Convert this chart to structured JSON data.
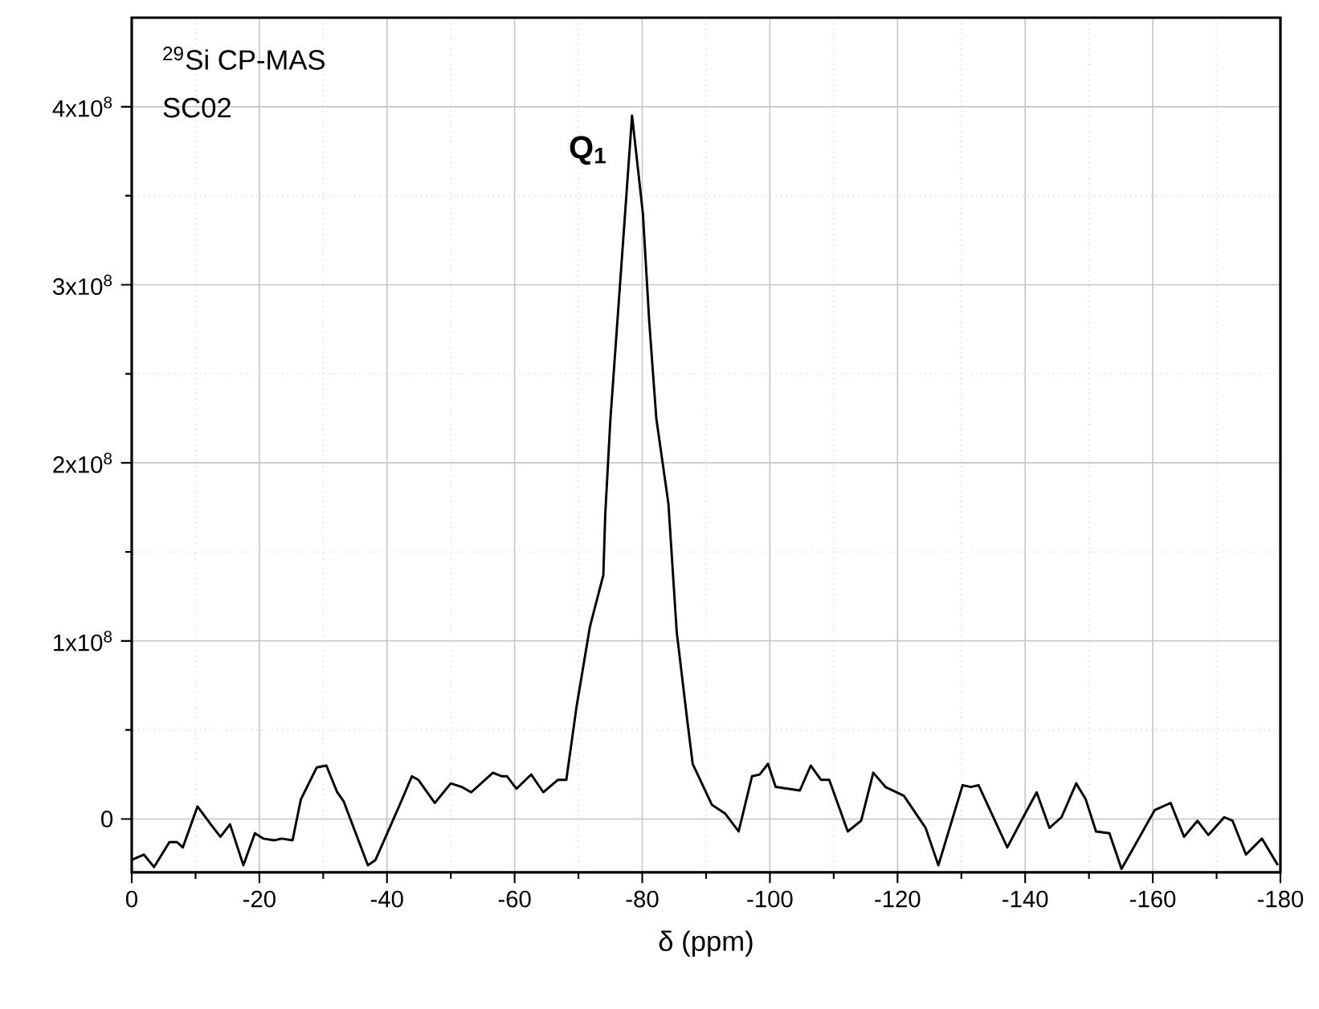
{
  "chart_data": {
    "type": "line",
    "xlabel": "δ (ppm)",
    "annotations": [
      "$^{29}$Si CP-MAS",
      "SC02",
      {
        "text": "Q$_{1}$",
        "x": -78.4,
        "y": 395000000.0
      }
    ],
    "xlim": [
      0,
      -180
    ],
    "xticks": [
      0,
      {
        "value": -10,
        "label": null
      },
      -20,
      {
        "value": -30,
        "label": null
      },
      -40,
      {
        "value": -50,
        "label": null
      },
      -60,
      {
        "value": -70,
        "label": null
      },
      -80,
      {
        "value": -90,
        "label": null
      },
      -100,
      {
        "value": -110,
        "label": null
      },
      -120,
      {
        "value": -130,
        "label": null
      },
      -140,
      {
        "value": -150,
        "label": null
      },
      -160,
      {
        "value": -170,
        "label": null
      },
      -180
    ],
    "ylim": [
      -30000000.0,
      450000000.0
    ],
    "yticks": [
      {
        "value": 0,
        "label": "0"
      },
      {
        "value": 50000000.0,
        "label": null
      },
      {
        "value": 100000000.0,
        "label": "1x10$^{8}$"
      },
      {
        "value": 150000000.0,
        "label": null
      },
      {
        "value": 200000000.0,
        "label": "2x10$^{8}$"
      },
      {
        "value": 250000000.0,
        "label": null
      },
      {
        "value": 300000000.0,
        "label": "3x10$^{8}$"
      },
      {
        "value": 350000000.0,
        "label": null
      },
      {
        "value": 400000000.0,
        "label": "4x10$^{8}$"
      }
    ],
    "grid": true,
    "marker": "none",
    "line_style": "solid",
    "series": [
      {
        "color": "#000000",
        "x": [
          0,
          -1.9,
          -3.5,
          -5.9,
          -7.1,
          -8.0,
          -10.3,
          -12.6,
          -13.9,
          -15.4,
          -17.5,
          -19.3,
          -20.6,
          -22.3,
          -23.5,
          -25.2,
          -26.5,
          -29.0,
          -30.5,
          -32.2,
          -33.2,
          -37.0,
          -38.2,
          -42.0,
          -43.9,
          -44.9,
          -47.5,
          -50.0,
          -51.7,
          -53.2,
          -56.6,
          -58.0,
          -58.8,
          -60.3,
          -62.6,
          -64.5,
          -66.8,
          -68.1,
          -69.7,
          -71.8,
          -73.9,
          -74.2,
          -75.0,
          -78.4,
          -80.1,
          -81.1,
          -82.2,
          -84.1,
          -85.4,
          -87.1,
          -87.9,
          -90.9,
          -93.0,
          -95.1,
          -97.2,
          -98.4,
          -99.7,
          -100.9,
          -104.7,
          -106.4,
          -108.0,
          -109.3,
          -112.2,
          -114.3,
          -116.2,
          -118.1,
          -121.0,
          -124.4,
          -126.4,
          -130.2,
          -131.5,
          -132.7,
          -137.2,
          -139.4,
          -141.8,
          -143.8,
          -145.7,
          -148.0,
          -149.5,
          -151.1,
          -153.2,
          -155.1,
          -157.0,
          -160.3,
          -162.8,
          -164.9,
          -167.0,
          -168.7,
          -171.2,
          -172.5,
          -174.6,
          -177.1,
          -179.6
        ],
        "values": [
          -23000000.0,
          -20000000.0,
          -27000000.0,
          -13000000.0,
          -13000000.0,
          -16000000.0,
          7000000.0,
          -4000000.0,
          -10000000.0,
          -3000000.0,
          -26000000.0,
          -8000000.0,
          -11000000.0,
          -12000000.0,
          -11000000.0,
          -12000000.0,
          11000000.0,
          29000000.0,
          30000000.0,
          15000000.0,
          10000000.0,
          -26000000.0,
          -23000000.0,
          8000000.0,
          24000000.0,
          22000000.0,
          9000000.0,
          20000000.0,
          18000000.0,
          15000000.0,
          26000000.0,
          24000000.0,
          24000000.0,
          17000000.0,
          25000000.0,
          15000000.0,
          22000000.0,
          22000000.0,
          63000000.0,
          108000000.0,
          137000000.0,
          171000000.0,
          224000000.0,
          395000000.0,
          340000000.0,
          279000000.0,
          225000000.0,
          177000000.0,
          105000000.0,
          54000000.0,
          31000000.0,
          8000000.0,
          3000000.0,
          -7000000.0,
          24000000.0,
          25000000.0,
          31000000.0,
          18000000.0,
          16000000.0,
          30000000.0,
          22000000.0,
          22000000.0,
          -7000000.0,
          -1000000.0,
          26000000.0,
          18000000.0,
          13000000.0,
          -5000000.0,
          -26000000.0,
          19000000.0,
          18000000.0,
          19000000.0,
          -16000000.0,
          -1000000.0,
          15000000.0,
          -5000000.0,
          1000000.0,
          20000000.0,
          11000000.0,
          -7000000.0,
          -8000000.0,
          -28000000.0,
          -16000000.0,
          5000000.0,
          9000000.0,
          -10000000.0,
          -1000000.0,
          -9000000.0,
          1000000.0,
          -1000000.0,
          -20000000.0,
          -11000000.0,
          -26000000.0
        ]
      }
    ]
  }
}
